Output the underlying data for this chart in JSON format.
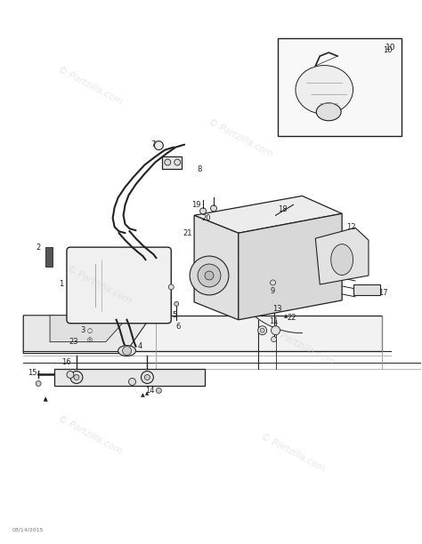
{
  "background_color": "#ffffff",
  "watermark_text": "© Partzilla.com",
  "watermark_color": "#cccccc",
  "watermark_alpha": 0.45,
  "date_text": "08/14/2015",
  "line_color": "#222222",
  "mid_gray": "#999999"
}
